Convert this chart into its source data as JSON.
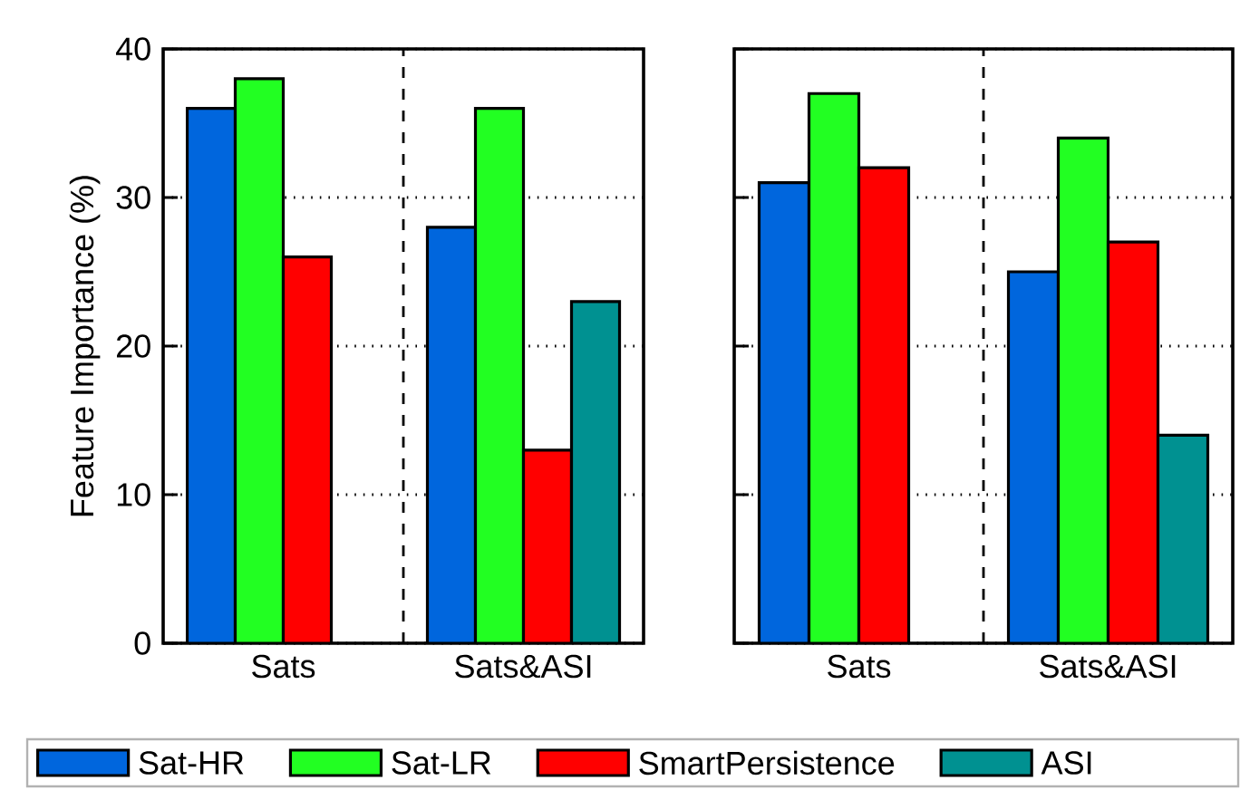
{
  "chart_data": [
    {
      "type": "bar",
      "ylabel": "Feature Importance (%)",
      "categories": [
        "Sats",
        "Sats&ASI"
      ],
      "series": [
        {
          "name": "Sat-HR",
          "color": "#0066dd",
          "values": [
            36,
            28
          ]
        },
        {
          "name": "Sat-LR",
          "color": "#22ff22",
          "values": [
            38,
            36
          ]
        },
        {
          "name": "SmartPersistence",
          "color": "#ff0000",
          "values": [
            26,
            13
          ]
        },
        {
          "name": "ASI",
          "color": "#009191",
          "values": [
            null,
            23
          ]
        }
      ],
      "ylim": [
        0,
        40
      ],
      "yticks": [
        0,
        10,
        20,
        30,
        40
      ],
      "grid": "y",
      "legend": "bottom"
    },
    {
      "type": "bar",
      "categories": [
        "Sats",
        "Sats&ASI"
      ],
      "series": [
        {
          "color": "#0066dd",
          "values": [
            31,
            25
          ]
        },
        {
          "color": "#22ff22",
          "values": [
            37,
            34
          ]
        },
        {
          "color": "#ff0000",
          "values": [
            32,
            27
          ]
        },
        {
          "color": "#009191",
          "values": [
            null,
            14
          ]
        }
      ],
      "ylim": [
        0,
        40
      ],
      "yticks": [
        0,
        10,
        20,
        30,
        40
      ],
      "grid": "y",
      "tick_labels": "x"
    }
  ]
}
